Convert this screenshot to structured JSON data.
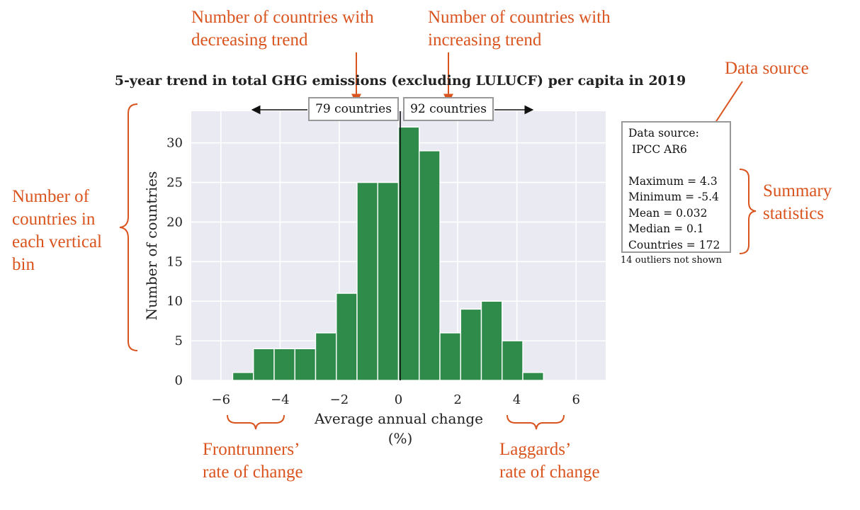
{
  "chart_data": {
    "type": "bar",
    "title": "5-year trend in total GHG emissions (excluding LULUCF) per capita in 2019",
    "xlabel": "Average annual change\n(%)",
    "ylabel": "Number of countries",
    "xlim": [
      -7,
      7
    ],
    "ylim": [
      0,
      34
    ],
    "xticks": [
      -6,
      -4,
      -2,
      0,
      2,
      4,
      6
    ],
    "xtick_labels": [
      "−6",
      "−4",
      "−2",
      "0",
      "2",
      "4",
      "6"
    ],
    "yticks": [
      0,
      5,
      10,
      15,
      20,
      25,
      30
    ],
    "bin_edges": [
      -5.6,
      -4.9,
      -4.2,
      -3.5,
      -2.8,
      -2.1,
      -1.4,
      -0.7,
      0.0,
      0.7,
      1.4,
      2.1,
      2.8,
      3.5,
      4.2,
      4.9
    ],
    "values": [
      1,
      4,
      4,
      4,
      6,
      11,
      25,
      25,
      32,
      29,
      6,
      9,
      10,
      5,
      1
    ],
    "bar_color": "#2e8b4a",
    "background": "#eaeaf2",
    "grid": true,
    "decreasing_label": "79 countries",
    "increasing_label": "92 countries",
    "summary": {
      "source_label": "Data source:",
      "source_value": " IPCC AR6",
      "maximum": "Maximum = 4.3",
      "minimum": "Minimum = -5.4",
      "mean": "Mean = 0.032",
      "median": "Median = 0.1",
      "countries": "Countries = 172",
      "outliers": "14 outliers not shown"
    }
  },
  "annotations": {
    "decreasing": "Number of countries with\ndecreasing trend",
    "increasing": "Number of countries with\nincreasing trend",
    "data_source": "Data source",
    "summary_statistics": "Summary\nstatistics",
    "bin_count": "Number of\ncountries in\neach vertical\nbin",
    "frontrunners": "Frontrunners’\nrate of change",
    "laggards": "Laggards’\nrate of change",
    "color": "#d9541e"
  }
}
